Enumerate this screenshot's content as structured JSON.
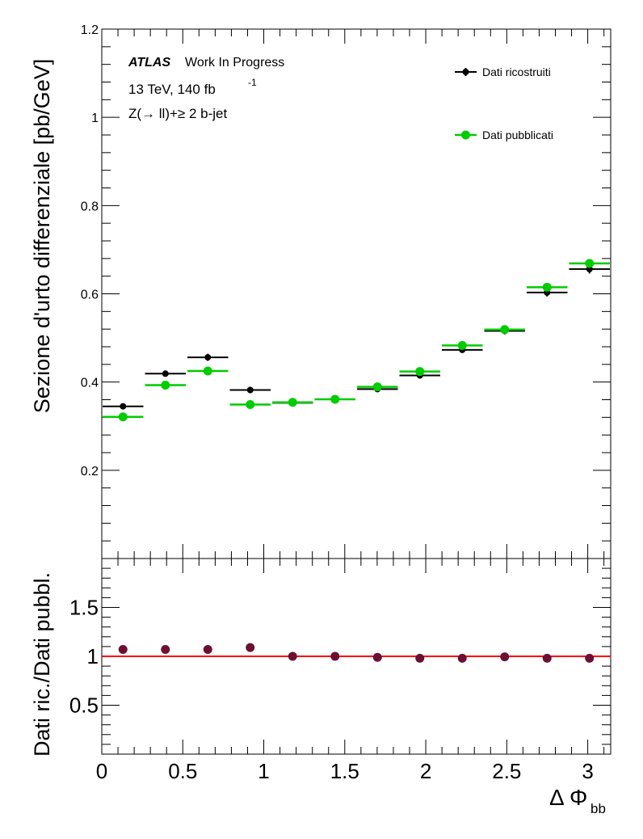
{
  "chart_data": [
    {
      "type": "scatter",
      "annotation": {
        "experiment": "ATLAS",
        "status": "Work In Progress",
        "energy_lumi": "13 TeV, 140 fb",
        "lumi_exp": "-1",
        "selection": "Z(→ ll)+≥ 2 b-jet"
      },
      "ylabel": "Sezione d'urto differenziale [pb/GeV]",
      "xlim": [
        0,
        3.1416
      ],
      "ylim": [
        0,
        1.2
      ],
      "yticks": [
        0.2,
        0.4,
        0.6,
        0.8,
        1,
        1.2
      ],
      "ytick_labels": [
        "0.2",
        "0.4",
        "0.6",
        "0.8",
        "1",
        "1.2"
      ],
      "legend_position": "top-right",
      "bin_edges": [
        0,
        0.2618,
        0.5236,
        0.7854,
        1.0472,
        1.309,
        1.5708,
        1.8326,
        2.0944,
        2.3562,
        2.618,
        2.8798,
        3.1416
      ],
      "series": [
        {
          "name": "Dati ricostruiti",
          "color": "#000000",
          "values": [
            0.345,
            0.419,
            0.456,
            0.382,
            0.353,
            0.361,
            0.384,
            0.415,
            0.473,
            0.516,
            0.603,
            0.656
          ],
          "errors": [
            0.006,
            0.007,
            0.008,
            0.007,
            0.006,
            0.006,
            0.006,
            0.007,
            0.007,
            0.008,
            0.009,
            0.01
          ]
        },
        {
          "name": "Dati pubblicati",
          "color": "#00cc00",
          "values": [
            0.321,
            0.393,
            0.425,
            0.349,
            0.354,
            0.361,
            0.389,
            0.424,
            0.483,
            0.519,
            0.615,
            0.669
          ],
          "errors": [
            0,
            0,
            0,
            0,
            0,
            0,
            0,
            0,
            0,
            0,
            0,
            0
          ]
        }
      ]
    },
    {
      "type": "scatter",
      "ylabel": "Dati ric./Dati pubbl.",
      "xlabel": "Δ Φ",
      "xlabel_sub": "bb",
      "xlim": [
        0,
        3.1416
      ],
      "ylim": [
        0,
        2
      ],
      "yticks": [
        0.5,
        1,
        1.5
      ],
      "ytick_labels": [
        "0.5",
        "1",
        "1.5"
      ],
      "xticks": [
        0,
        0.5,
        1,
        1.5,
        2,
        2.5,
        3
      ],
      "xtick_labels": [
        "0",
        "0.5",
        "1",
        "1.5",
        "2",
        "2.5",
        "3"
      ],
      "reference_line": 1,
      "reference_color": "#ff0000",
      "marker_color": "#6b1033",
      "x": [
        0.1309,
        0.3927,
        0.6545,
        0.9163,
        1.1781,
        1.4399,
        1.7017,
        1.9635,
        2.2253,
        2.4871,
        2.7489,
        3.0107
      ],
      "values": [
        1.07,
        1.07,
        1.07,
        1.09,
        1.0,
        1.0,
        0.99,
        0.98,
        0.98,
        0.995,
        0.98,
        0.98
      ]
    }
  ]
}
